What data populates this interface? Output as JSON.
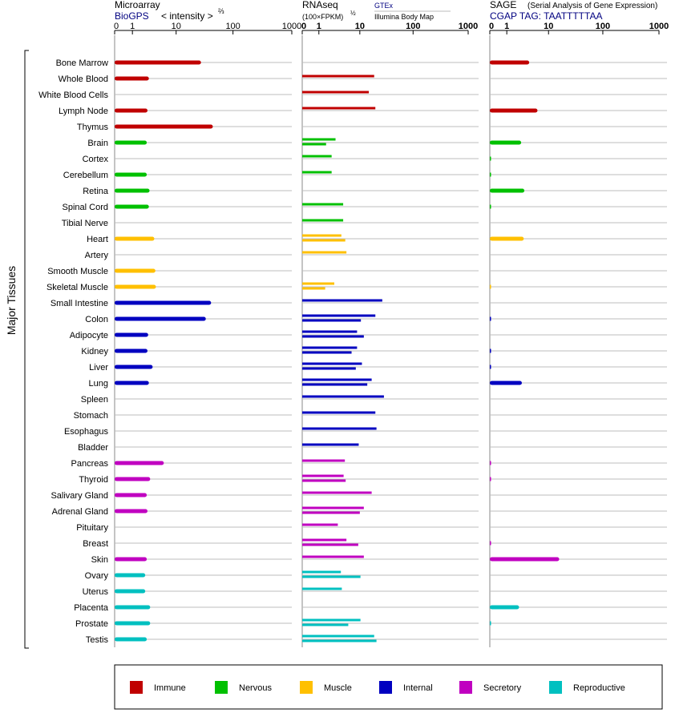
{
  "header": {
    "microarray": {
      "title": "Microarray",
      "source": "BioGPS",
      "units": "< intensity >",
      "units_exp": "⅔"
    },
    "rnaseq": {
      "title": "RNAseq",
      "units": "(100×FPKM)",
      "units_exp": "½",
      "source_primary": "GTEx",
      "source_secondary": "Illumina Body Map"
    },
    "sage": {
      "title": "SAGE",
      "subtitle": "(Serial Analysis of Gene Expression)",
      "tag": "CGAP TAG: TAATTTTTAA"
    }
  },
  "y_axis_label": "Major Tissues",
  "colors": {
    "Immune": "#c00000",
    "Nervous": "#00c000",
    "Muscle": "#ffc000",
    "Internal": "#0000c0",
    "Secretory": "#c000c0",
    "Reproductive": "#00c0c0",
    "source_link": "#000080"
  },
  "legend": [
    "Immune",
    "Nervous",
    "Muscle",
    "Internal",
    "Secretory",
    "Reproductive"
  ],
  "chart_data": {
    "type": "bar",
    "axis_ticks": [
      "0",
      "1",
      "10",
      "100",
      "1000"
    ],
    "axis_scale": "log(1+x)",
    "xlim": [
      0,
      1000
    ],
    "tissues": [
      {
        "name": "Bone Marrow",
        "system": "Immune",
        "microarray": 28,
        "rnaseq": [],
        "sage": 4
      },
      {
        "name": "Whole Blood",
        "system": "Immune",
        "microarray": 2.8,
        "rnaseq": [
          19
        ],
        "sage": null
      },
      {
        "name": "White Blood Cells",
        "system": "Immune",
        "microarray": null,
        "rnaseq": [
          15
        ],
        "sage": null
      },
      {
        "name": "Lymph Node",
        "system": "Immune",
        "microarray": 2.6,
        "rnaseq": [
          20
        ],
        "sage": 6
      },
      {
        "name": "Thymus",
        "system": "Immune",
        "microarray": 45,
        "rnaseq": [],
        "sage": null
      },
      {
        "name": "Brain",
        "system": "Nervous",
        "microarray": 2.5,
        "rnaseq": [
          3,
          1.7
        ],
        "sage": 2.6
      },
      {
        "name": "Cortex",
        "system": "Nervous",
        "microarray": null,
        "rnaseq": [
          2.4
        ],
        "sage": 0.04
      },
      {
        "name": "Cerebellum",
        "system": "Nervous",
        "microarray": 2.5,
        "rnaseq": [
          2.4
        ],
        "sage": 0.04
      },
      {
        "name": "Retina",
        "system": "Nervous",
        "microarray": 2.9,
        "rnaseq": [],
        "sage": 3.1
      },
      {
        "name": "Spinal Cord",
        "system": "Nervous",
        "microarray": 2.8,
        "rnaseq": [
          4.5
        ],
        "sage": 0.04
      },
      {
        "name": "Tibial Nerve",
        "system": "Nervous",
        "microarray": null,
        "rnaseq": [
          4.5
        ],
        "sage": null
      },
      {
        "name": "Heart",
        "system": "Muscle",
        "microarray": 3.7,
        "rnaseq": [
          4.1,
          5
        ],
        "sage": 3
      },
      {
        "name": "Artery",
        "system": "Muscle",
        "microarray": null,
        "rnaseq": [
          5.3
        ],
        "sage": null
      },
      {
        "name": "Smooth Muscle",
        "system": "Muscle",
        "microarray": 3.9,
        "rnaseq": [],
        "sage": null
      },
      {
        "name": "Skeletal Muscle",
        "system": "Muscle",
        "microarray": 4,
        "rnaseq": [
          2.8,
          1.6
        ],
        "sage": 0.02
      },
      {
        "name": "Small Intestine",
        "system": "Internal",
        "microarray": 42,
        "rnaseq": [
          27
        ],
        "sage": null
      },
      {
        "name": "Colon",
        "system": "Internal",
        "microarray": 34,
        "rnaseq": [
          20,
          10.5
        ],
        "sage": 0.05
      },
      {
        "name": "Adipocyte",
        "system": "Internal",
        "microarray": 2.7,
        "rnaseq": [
          8.8,
          12
        ],
        "sage": null
      },
      {
        "name": "Kidney",
        "system": "Internal",
        "microarray": 2.6,
        "rnaseq": [
          8.8,
          6.8
        ],
        "sage": 0.05
      },
      {
        "name": "Liver",
        "system": "Internal",
        "microarray": 3.4,
        "rnaseq": [
          11,
          8.3
        ],
        "sage": 0.05
      },
      {
        "name": "Lung",
        "system": "Internal",
        "microarray": 2.8,
        "rnaseq": [
          17,
          14
        ],
        "sage": 2.7
      },
      {
        "name": "Spleen",
        "system": "Internal",
        "microarray": null,
        "rnaseq": [
          29
        ],
        "sage": null
      },
      {
        "name": "Stomach",
        "system": "Internal",
        "microarray": null,
        "rnaseq": [
          20
        ],
        "sage": null
      },
      {
        "name": "Esophagus",
        "system": "Internal",
        "microarray": null,
        "rnaseq": [
          21
        ],
        "sage": null
      },
      {
        "name": "Bladder",
        "system": "Internal",
        "microarray": null,
        "rnaseq": [
          9.5
        ],
        "sage": null
      },
      {
        "name": "Pancreas",
        "system": "Secretory",
        "microarray": 5.8,
        "rnaseq": [
          4.9
        ],
        "sage": 0.05
      },
      {
        "name": "Thyroid",
        "system": "Secretory",
        "microarray": 3,
        "rnaseq": [
          4.6,
          5.1
        ],
        "sage": 0.05
      },
      {
        "name": "Salivary Gland",
        "system": "Secretory",
        "microarray": 2.5,
        "rnaseq": [
          17
        ],
        "sage": null
      },
      {
        "name": "Adrenal Gland",
        "system": "Secretory",
        "microarray": 2.6,
        "rnaseq": [
          12,
          10
        ],
        "sage": null
      },
      {
        "name": "Pituitary",
        "system": "Secretory",
        "microarray": null,
        "rnaseq": [
          3.4
        ],
        "sage": null
      },
      {
        "name": "Breast",
        "system": "Secretory",
        "microarray": null,
        "rnaseq": [
          5.3,
          9.3
        ],
        "sage": 0.05
      },
      {
        "name": "Skin",
        "system": "Secretory",
        "microarray": 2.5,
        "rnaseq": [
          12
        ],
        "sage": 16
      },
      {
        "name": "Ovary",
        "system": "Reproductive",
        "microarray": 2.3,
        "rnaseq": [
          4,
          10.3
        ],
        "sage": null
      },
      {
        "name": "Uterus",
        "system": "Reproductive",
        "microarray": 2.3,
        "rnaseq": [
          4.2
        ],
        "sage": null
      },
      {
        "name": "Placenta",
        "system": "Reproductive",
        "microarray": 3,
        "rnaseq": [],
        "sage": 2.3
      },
      {
        "name": "Prostate",
        "system": "Reproductive",
        "microarray": 3,
        "rnaseq": [
          10.3,
          5.8
        ],
        "sage": 0.02
      },
      {
        "name": "Testis",
        "system": "Reproductive",
        "microarray": 2.5,
        "rnaseq": [
          19,
          21
        ],
        "sage": null
      }
    ]
  }
}
